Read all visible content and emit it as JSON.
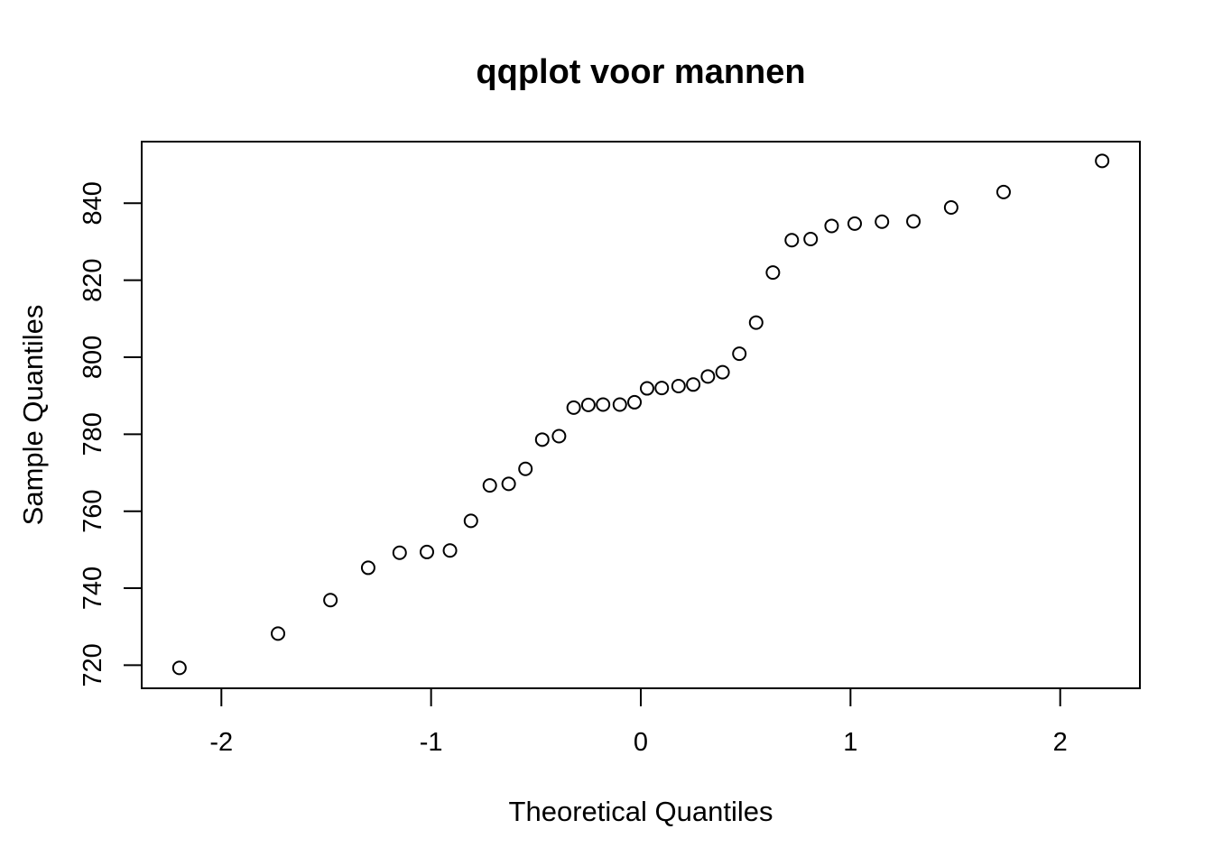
{
  "chart_data": {
    "type": "scatter",
    "title": "qqplot voor mannen",
    "xlabel": "Theoretical Quantiles",
    "ylabel": "Sample Quantiles",
    "xlim": [
      -2.38,
      2.38
    ],
    "ylim": [
      714,
      856
    ],
    "xticks": [
      -2,
      -1,
      0,
      1,
      2
    ],
    "xtick_labels": [
      "-2",
      "-1",
      "0",
      "1",
      "2"
    ],
    "yticks": [
      720,
      740,
      760,
      780,
      800,
      820,
      840
    ],
    "ytick_labels": [
      "720",
      "740",
      "760",
      "780",
      "800",
      "820",
      "840"
    ],
    "grid": false,
    "legend": "none",
    "points": [
      {
        "x": -2.2,
        "y": 719.3
      },
      {
        "x": -1.73,
        "y": 728.2
      },
      {
        "x": -1.48,
        "y": 736.9
      },
      {
        "x": -1.3,
        "y": 745.3
      },
      {
        "x": -1.15,
        "y": 749.2
      },
      {
        "x": -1.02,
        "y": 749.4
      },
      {
        "x": -0.91,
        "y": 749.8
      },
      {
        "x": -0.81,
        "y": 757.5
      },
      {
        "x": -0.72,
        "y": 766.7
      },
      {
        "x": -0.63,
        "y": 767.1
      },
      {
        "x": -0.55,
        "y": 771.0
      },
      {
        "x": -0.47,
        "y": 778.6
      },
      {
        "x": -0.39,
        "y": 779.5
      },
      {
        "x": -0.32,
        "y": 786.9
      },
      {
        "x": -0.25,
        "y": 787.6
      },
      {
        "x": -0.18,
        "y": 787.7
      },
      {
        "x": -0.1,
        "y": 787.7
      },
      {
        "x": -0.03,
        "y": 788.3
      },
      {
        "x": 0.03,
        "y": 791.9
      },
      {
        "x": 0.1,
        "y": 792.0
      },
      {
        "x": 0.18,
        "y": 792.5
      },
      {
        "x": 0.25,
        "y": 792.9
      },
      {
        "x": 0.32,
        "y": 795.0
      },
      {
        "x": 0.39,
        "y": 796.1
      },
      {
        "x": 0.47,
        "y": 800.9
      },
      {
        "x": 0.55,
        "y": 809.0
      },
      {
        "x": 0.63,
        "y": 822.0
      },
      {
        "x": 0.72,
        "y": 830.4
      },
      {
        "x": 0.81,
        "y": 830.7
      },
      {
        "x": 0.91,
        "y": 834.1
      },
      {
        "x": 1.02,
        "y": 834.7
      },
      {
        "x": 1.15,
        "y": 835.2
      },
      {
        "x": 1.3,
        "y": 835.3
      },
      {
        "x": 1.48,
        "y": 838.9
      },
      {
        "x": 1.73,
        "y": 842.9
      },
      {
        "x": 2.2,
        "y": 851.0
      }
    ]
  }
}
